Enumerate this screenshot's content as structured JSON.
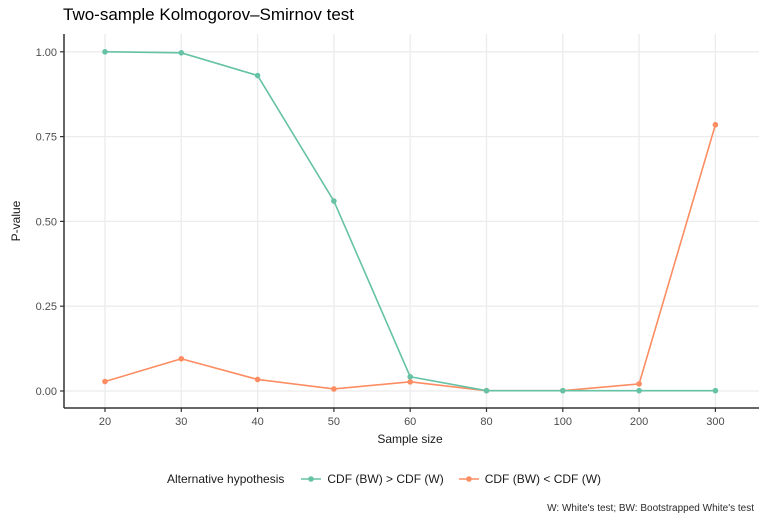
{
  "title": "Two-sample Kolmogorov–Smirnov test",
  "caption": "W: White's test; BW: Bootstrapped White's test",
  "legend": {
    "title": "Alternative hypothesis"
  },
  "colors": {
    "series_green": "#66C2A5",
    "series_orange": "#FC8D62",
    "gridline": "#ECECEC",
    "axis_line": "#333333",
    "tick_label": "#4D4D4D"
  },
  "chart_data": {
    "type": "line",
    "title": "Two-sample Kolmogorov–Smirnov test",
    "xlabel": "Sample size",
    "ylabel": "P-value",
    "categories": [
      20,
      30,
      40,
      50,
      60,
      80,
      100,
      200,
      300
    ],
    "x_tick_labels": [
      "20",
      "30",
      "40",
      "50",
      "60",
      "80",
      "100",
      "200",
      "300"
    ],
    "x_scale_note": "categories equally spaced",
    "y_ticks": [
      0,
      0.25,
      0.5,
      0.75,
      1.0
    ],
    "y_tick_labels": [
      "0.00",
      "0.25",
      "0.50",
      "0.75",
      "1.00"
    ],
    "ylim": [
      0,
      1
    ],
    "grid": "major gridlines only, light gray, horizontal and vertical",
    "legend_position": "bottom",
    "legend_title": "Alternative hypothesis",
    "series": [
      {
        "name": "CDF (BW) > CDF (W)",
        "color": "#66C2A5",
        "values": [
          1.0,
          0.997,
          0.93,
          0.56,
          0.042,
          0.001,
          0.001,
          0.001,
          0.001
        ]
      },
      {
        "name": "CDF (BW) < CDF (W)",
        "color": "#FC8D62",
        "values": [
          0.028,
          0.095,
          0.034,
          0.006,
          0.027,
          0.001,
          0.001,
          0.021,
          0.785
        ]
      }
    ]
  }
}
